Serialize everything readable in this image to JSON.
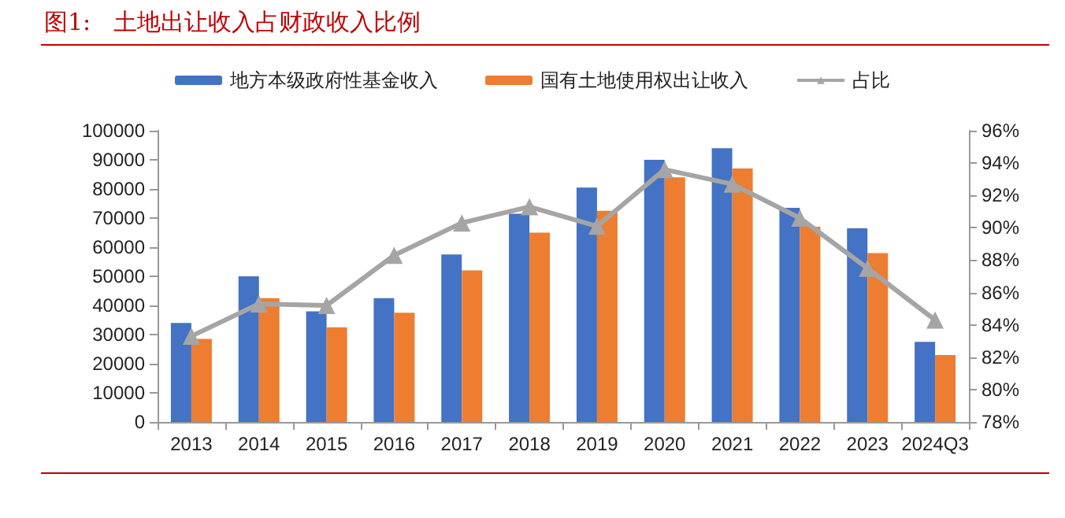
{
  "chart_data": {
    "type": "bar",
    "title": "图1:   土地出让收入占财政收入比例",
    "categories": [
      "2013",
      "2014",
      "2015",
      "2016",
      "2017",
      "2018",
      "2019",
      "2020",
      "2021",
      "2022",
      "2023",
      "2024Q3"
    ],
    "series": [
      {
        "name": "地方本级政府性基金收入",
        "color": "#4472c4",
        "values": [
          34000,
          50000,
          38000,
          42500,
          57500,
          71500,
          80500,
          90000,
          94000,
          73500,
          66500,
          27500
        ]
      },
      {
        "name": "国有土地使用权出让收入",
        "color": "#ed7d31",
        "values": [
          28500,
          42500,
          32500,
          37500,
          52000,
          65000,
          72500,
          84000,
          87000,
          67000,
          58000,
          23000
        ]
      },
      {
        "name": "占比",
        "type": "line",
        "axis": "y2",
        "color": "#a5a5a5",
        "marker": "triangle",
        "values": [
          83.3,
          85.3,
          85.2,
          88.3,
          90.3,
          91.3,
          90.1,
          93.6,
          92.7,
          90.6,
          87.5,
          84.3
        ]
      }
    ],
    "ylim": [
      0,
      100000
    ],
    "yticks": [
      0,
      10000,
      20000,
      30000,
      40000,
      50000,
      60000,
      70000,
      80000,
      90000,
      100000
    ],
    "y2lim": [
      78,
      96
    ],
    "y2ticks": [
      {
        "value": 78,
        "label": "78%"
      },
      {
        "value": 80,
        "label": "80%"
      },
      {
        "value": 82,
        "label": "82%"
      },
      {
        "value": 84,
        "label": "84%"
      },
      {
        "value": 86,
        "label": "86%"
      },
      {
        "value": 88,
        "label": "88%"
      },
      {
        "value": 90,
        "label": "90%"
      },
      {
        "value": 92,
        "label": "92%"
      },
      {
        "value": 94,
        "label": "94%"
      },
      {
        "value": 96,
        "label": "96%"
      }
    ],
    "grid": false,
    "legend": "top"
  }
}
